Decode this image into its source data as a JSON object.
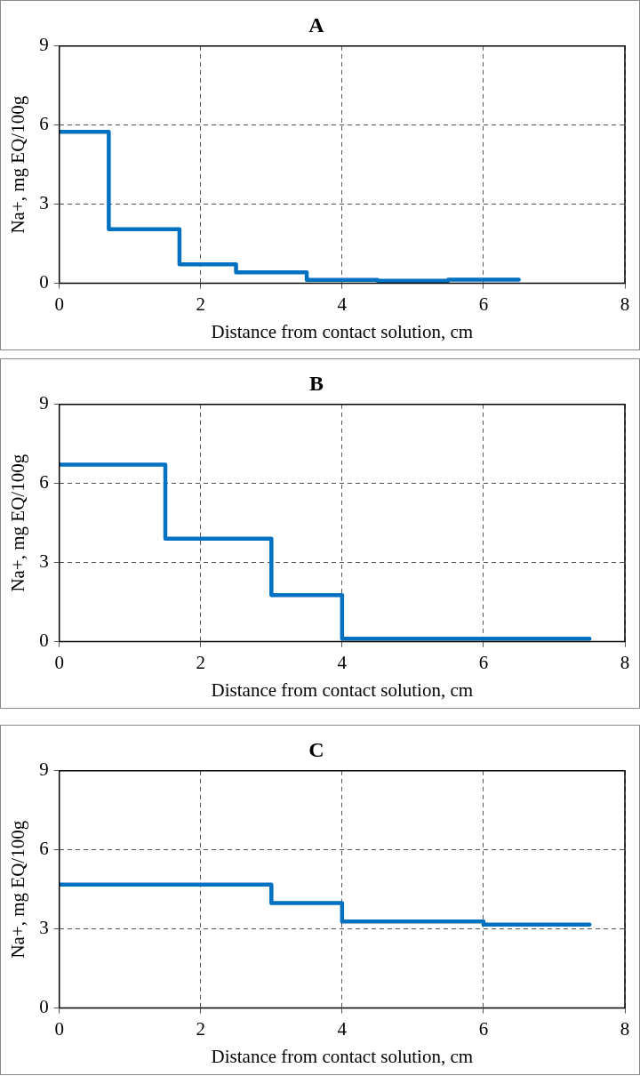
{
  "chart_data": [
    {
      "type": "step",
      "title": "A",
      "xlabel": "Distance from contact solution, cm",
      "ylabel": "Na+, mg EQ/100g",
      "x": [
        0,
        0.7,
        1.7,
        2.5,
        3.5,
        4.5,
        5.5,
        6.5
      ],
      "values": [
        5.75,
        2.05,
        0.72,
        0.42,
        0.13,
        0.1,
        0.14,
        0.14
      ],
      "color": "#0070c0",
      "xlim": [
        0,
        8
      ],
      "xticks": [
        0,
        2,
        4,
        6,
        8
      ],
      "ylim": [
        0,
        9
      ],
      "yticks": [
        0,
        3,
        6,
        9
      ],
      "grid": true
    },
    {
      "type": "step",
      "title": "B",
      "xlabel": "Distance from contact solution, cm",
      "ylabel": "Na+, mg EQ/100g",
      "x": [
        0,
        1.5,
        3,
        4,
        7.5
      ],
      "values": [
        6.72,
        3.91,
        1.77,
        0.11,
        0.11
      ],
      "color": "#0070c0",
      "xlim": [
        0,
        8
      ],
      "xticks": [
        0,
        2,
        4,
        6,
        8
      ],
      "ylim": [
        0,
        9
      ],
      "yticks": [
        0,
        3,
        6,
        9
      ],
      "grid": true
    },
    {
      "type": "step",
      "title": "C",
      "xlabel": "Distance from contact solution, cm",
      "ylabel": "Na+, mg EQ/100g",
      "x": [
        0,
        3,
        4,
        6,
        7.5
      ],
      "values": [
        4.68,
        3.98,
        3.28,
        3.17,
        3.17
      ],
      "color": "#0070c0",
      "xlim": [
        0,
        8
      ],
      "xticks": [
        0,
        2,
        4,
        6,
        8
      ],
      "ylim": [
        0,
        9
      ],
      "yticks": [
        0,
        3,
        6,
        9
      ],
      "grid": true
    }
  ]
}
